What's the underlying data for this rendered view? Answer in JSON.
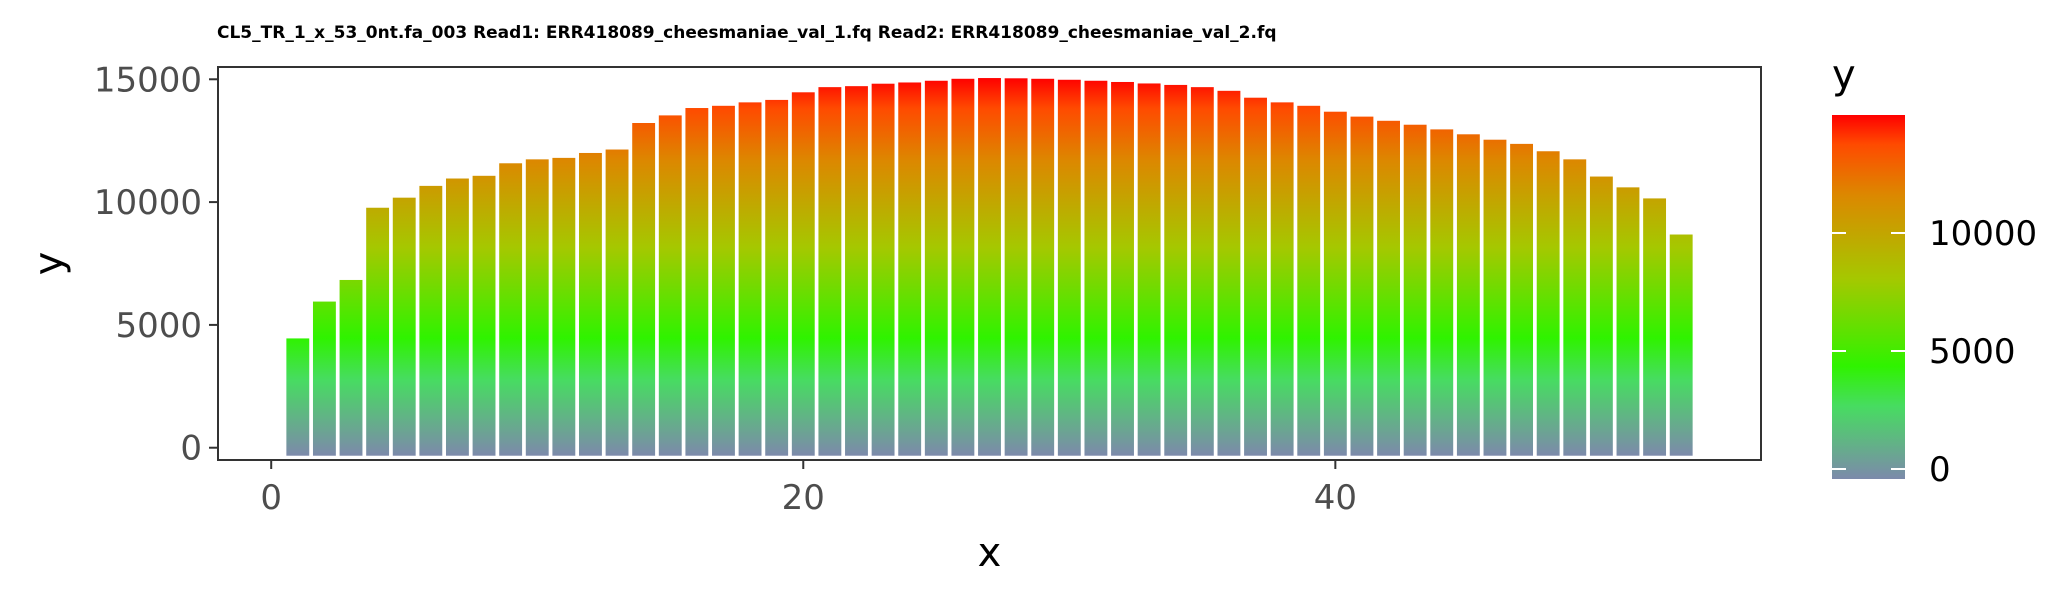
{
  "chart_data": {
    "type": "bar",
    "title": "CL5_TR_1_x_53_0nt.fa_003 Read1: ERR418089_cheesmaniae_val_1.fq Read2: ERR418089_cheesmaniae_val_2.fq",
    "xlabel": "x",
    "ylabel": "y",
    "x": [
      1,
      2,
      3,
      4,
      5,
      6,
      7,
      8,
      9,
      10,
      11,
      12,
      13,
      14,
      15,
      16,
      17,
      18,
      19,
      20,
      21,
      22,
      23,
      24,
      25,
      26,
      27,
      28,
      29,
      30,
      31,
      32,
      33,
      34,
      35,
      36,
      37,
      38,
      39,
      40,
      41,
      42,
      43,
      44,
      45,
      46,
      47,
      48,
      49,
      50,
      51,
      52,
      53
    ],
    "values": [
      4450,
      5950,
      6830,
      9770,
      10180,
      10660,
      10960,
      11070,
      11580,
      11740,
      11800,
      12000,
      12140,
      13220,
      13530,
      13830,
      13920,
      14060,
      14160,
      14470,
      14680,
      14720,
      14820,
      14870,
      14940,
      15020,
      15050,
      15040,
      15020,
      14980,
      14940,
      14890,
      14830,
      14770,
      14680,
      14530,
      14250,
      14060,
      13920,
      13680,
      13480,
      13310,
      13150,
      12960,
      12760,
      12540,
      12370,
      12070,
      11740,
      11040,
      10600,
      10150,
      8680
    ],
    "xlim": [
      -2,
      56
    ],
    "ylim": [
      -500,
      15500
    ],
    "x_ticks": [
      "0",
      "20",
      "40"
    ],
    "y_ticks": [
      "0",
      "5000",
      "10000",
      "15000"
    ],
    "grid": false,
    "legend": {
      "title": "y",
      "position": "right",
      "type": "colorbar",
      "labels": [
        "0",
        "5000",
        "10000"
      ],
      "colors": [
        "#7c8aaa",
        "#47dc61",
        "#2ff300",
        "#a5c800",
        "#dc8800",
        "#ff4a00",
        "#ff0000"
      ],
      "stops": [
        0,
        0.2,
        0.31,
        0.55,
        0.78,
        0.92,
        1.0
      ]
    }
  }
}
